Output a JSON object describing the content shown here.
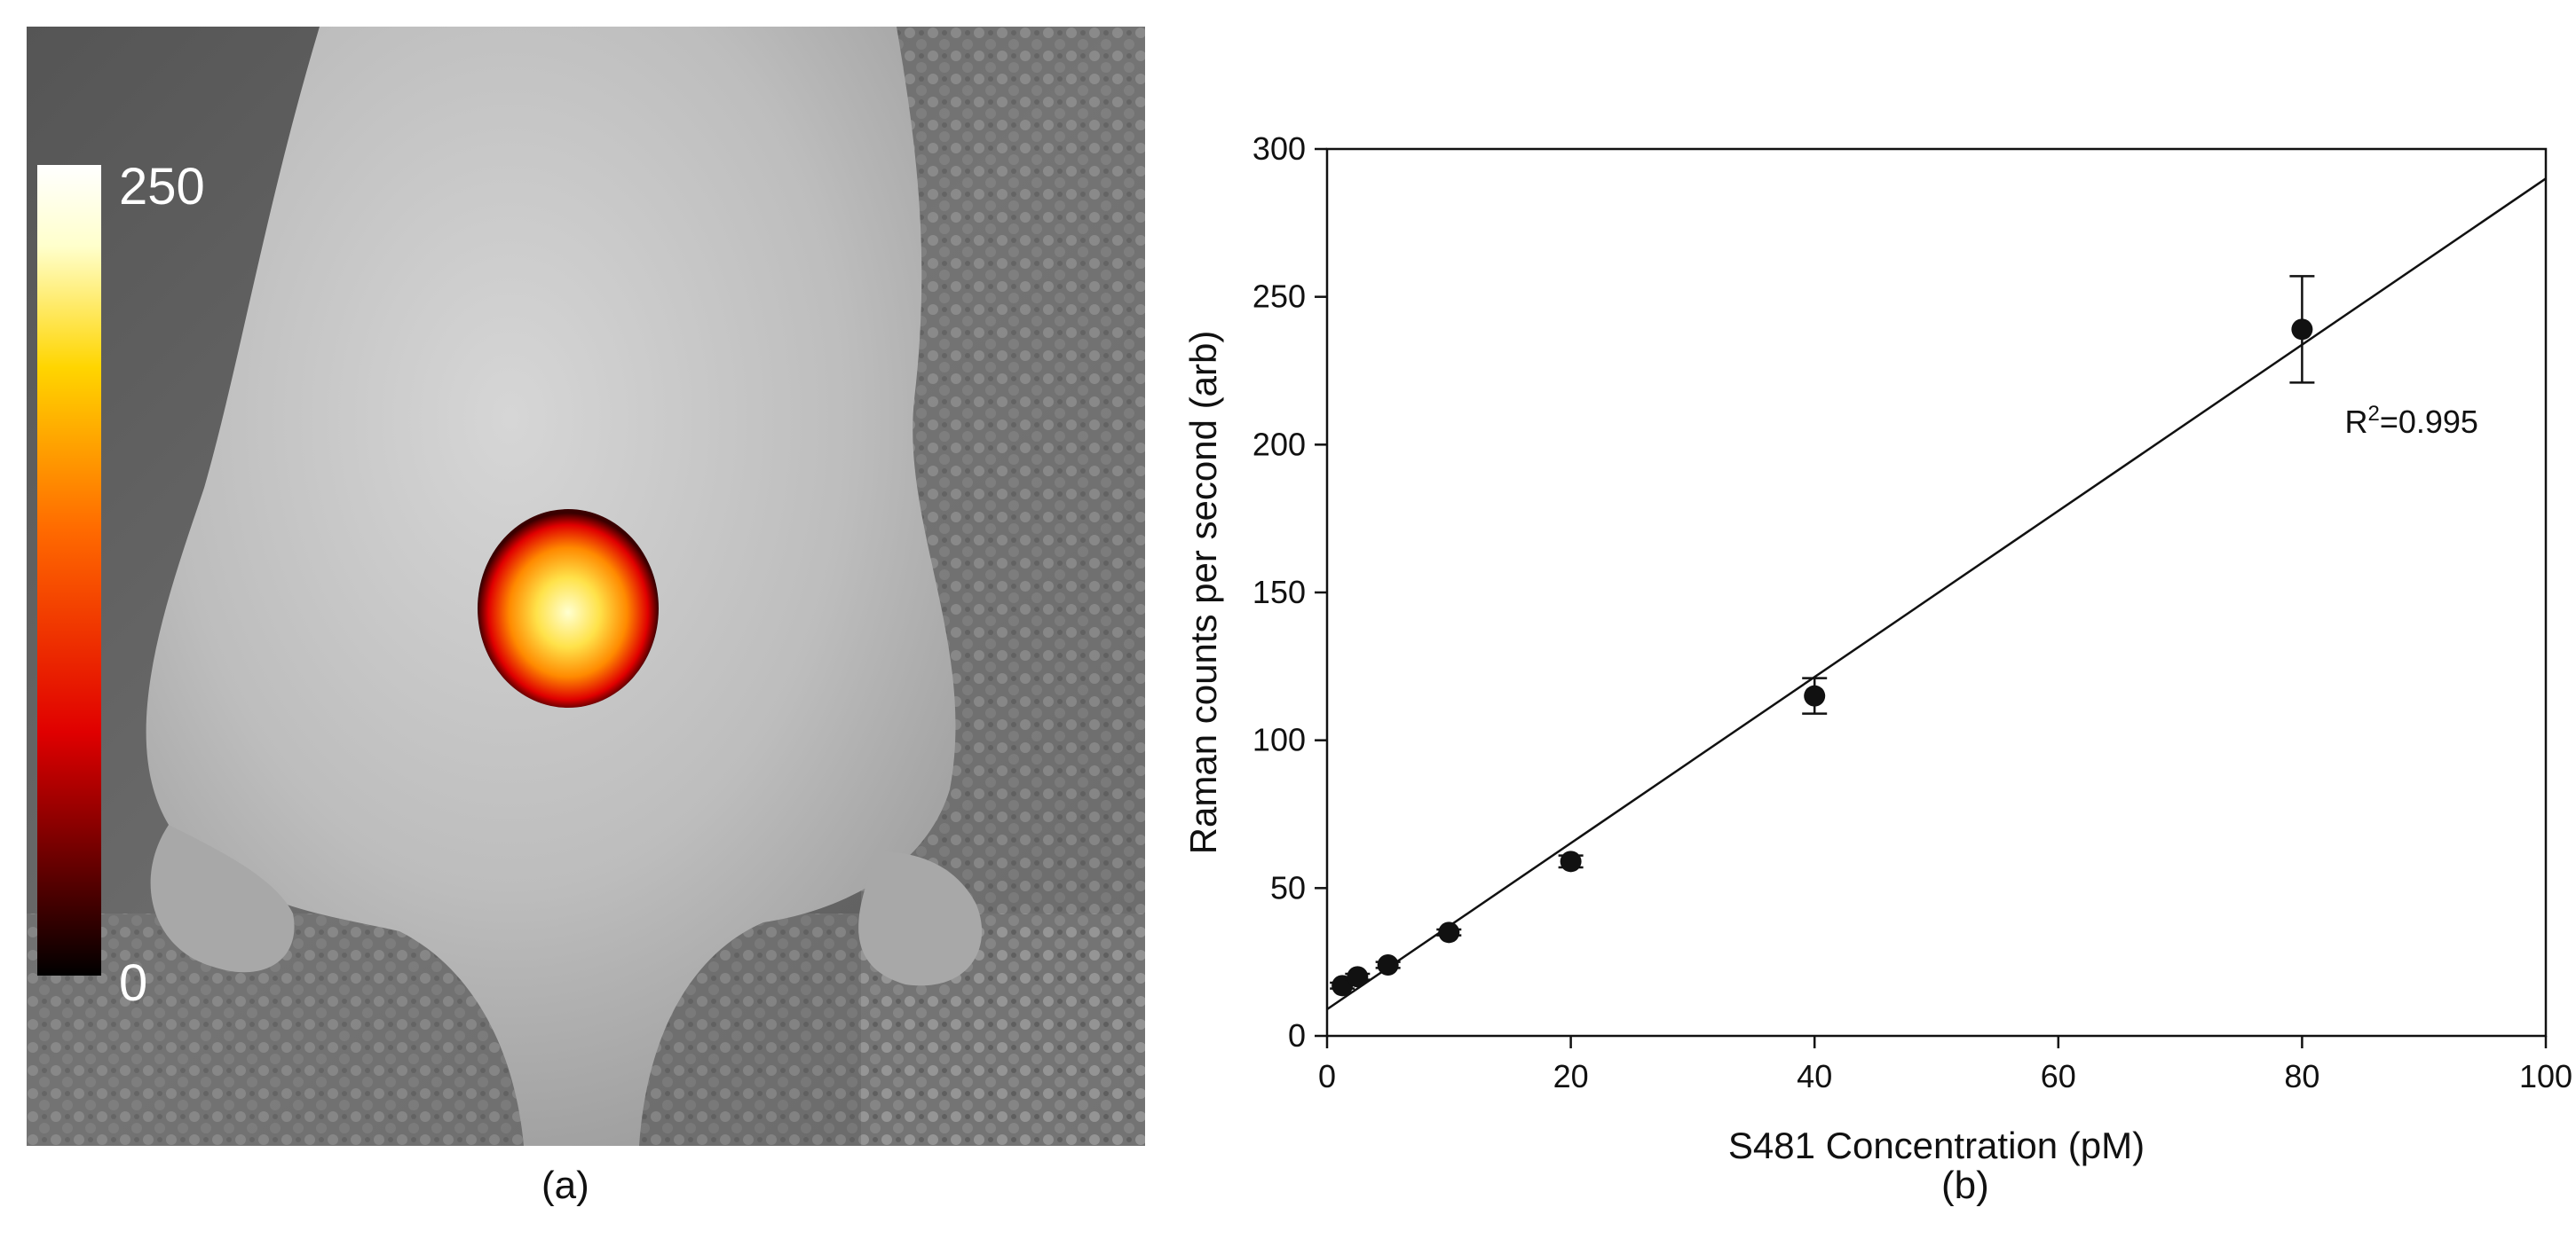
{
  "panel_a": {
    "caption": "(a)",
    "colorbar": {
      "max_label": "250",
      "min_label": "0",
      "colors": [
        "#000000",
        "#e00000",
        "#ff6a00",
        "#ffd500",
        "#ffffcc",
        "#ffffff"
      ]
    }
  },
  "panel_b": {
    "caption": "(b)",
    "chart_data": {
      "type": "scatter",
      "xlabel": "S481 Concentration (pM)",
      "ylabel": "Raman counts per second (arb)",
      "xlim": [
        0,
        100
      ],
      "ylim": [
        0,
        300
      ],
      "xticks": [
        0,
        20,
        40,
        60,
        80,
        100
      ],
      "yticks": [
        0,
        50,
        100,
        150,
        200,
        250,
        300
      ],
      "series": [
        {
          "points": [
            {
              "x": 1.25,
              "y": 17,
              "err": 1
            },
            {
              "x": 2.5,
              "y": 20,
              "err": 1
            },
            {
              "x": 5,
              "y": 24,
              "err": 1
            },
            {
              "x": 10,
              "y": 35,
              "err": 1
            },
            {
              "x": 20,
              "y": 59,
              "err": 2
            },
            {
              "x": 40,
              "y": 115,
              "err": 6
            },
            {
              "x": 80,
              "y": 239,
              "err": 18
            }
          ]
        }
      ],
      "fit_line": {
        "x": [
          0,
          100
        ],
        "y": [
          9,
          290
        ]
      },
      "annotation": {
        "base": "R",
        "sup": "2",
        "rest": "=0.995"
      },
      "grid": false,
      "legend": "none"
    }
  }
}
